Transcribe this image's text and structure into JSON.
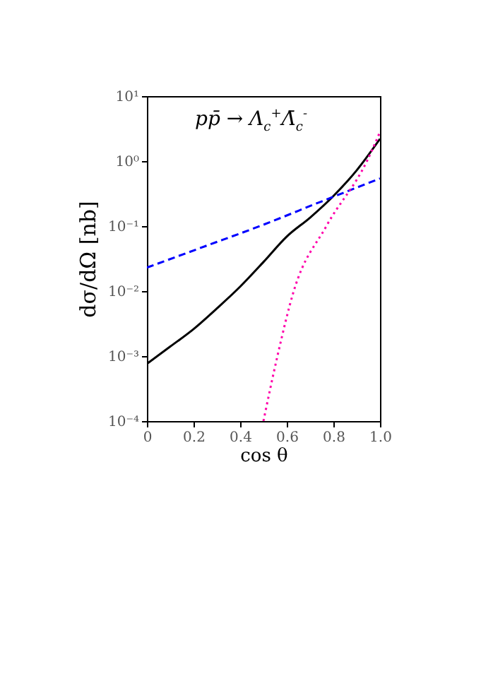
{
  "chart_data": {
    "type": "line",
    "xlabel": "cos θ",
    "ylabel": "dσ/dΩ [nb]",
    "annotations": [
      "pp̄ → Λ$_{c}$$^{+}$Λ̄$_{c}$$^{-}$"
    ],
    "log": "y",
    "grid": false,
    "legend": false,
    "marker": "none",
    "xlim": [
      0,
      1
    ],
    "xticks": [
      0,
      0.2,
      0.4,
      0.6,
      0.8,
      {
        "value": 1,
        "label": "1.0"
      }
    ],
    "ylim": [
      0.0001,
      10
    ],
    "yticks": [
      {
        "value": 0.0001,
        "label": "10⁻⁴"
      },
      {
        "value": 0.001,
        "label": "10⁻³"
      },
      {
        "value": 0.01,
        "label": "10⁻²"
      },
      {
        "value": 0.1,
        "label": "10⁻¹"
      },
      {
        "value": 1,
        "label": "10⁰"
      },
      {
        "value": 10,
        "label": "10¹"
      }
    ],
    "series": [
      {
        "color": "#000000",
        "line_style": "solid",
        "x": [
          0,
          0.1,
          0.2,
          0.3,
          0.4,
          0.5,
          0.6,
          0.7,
          0.8,
          0.9,
          1.0
        ],
        "values": [
          0.00076,
          0.0014,
          0.0026,
          0.0054,
          0.0117,
          0.028,
          0.069,
          0.135,
          0.29,
          0.72,
          2.2
        ]
      },
      {
        "color": "#0000ff",
        "line_style": "dashed",
        "x": [
          0,
          0.25,
          0.5,
          0.75,
          1.0
        ],
        "values": [
          0.023,
          0.049,
          0.105,
          0.24,
          0.54
        ]
      },
      {
        "color": "#ff00aa",
        "line_style": "dotted",
        "x": [
          0.5,
          0.56,
          0.63,
          0.77,
          0.944,
          1.0
        ],
        "values": [
          0.0001,
          0.001,
          0.01,
          0.1,
          1,
          2.8
        ]
      }
    ]
  }
}
